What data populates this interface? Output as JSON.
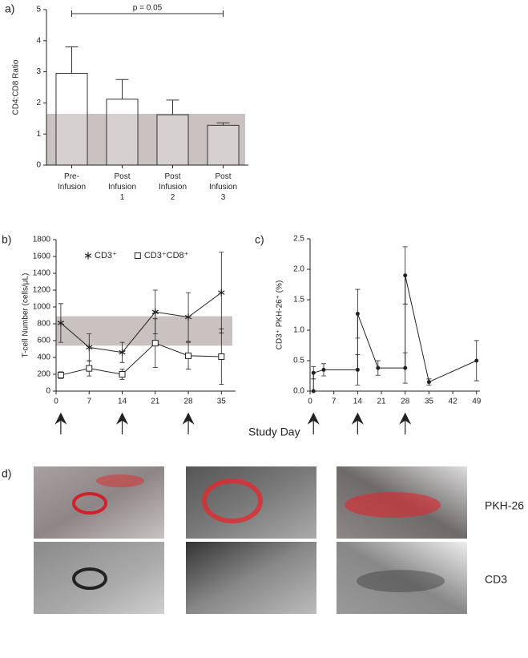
{
  "chart_data": [
    {
      "type": "bar",
      "panel": "a)",
      "ylabel": "CD4:CD8 Ratio",
      "categories": [
        [
          "Pre-",
          "Infusion"
        ],
        [
          "Post",
          "Infusion",
          "1"
        ],
        [
          "Post",
          "Infusion",
          "2"
        ],
        [
          "Post",
          "Infusion",
          "3"
        ]
      ],
      "values": [
        2.95,
        2.12,
        1.62,
        1.28
      ],
      "errors": [
        0.85,
        0.63,
        0.47,
        0.08
      ],
      "color": "#ffffff",
      "ylim": [
        0,
        5
      ],
      "yticks": [
        0,
        1,
        2,
        3,
        4,
        5
      ],
      "reference_band": [
        0,
        1.65
      ],
      "band_color": "#c9c2c0",
      "annotation": "p = 0.05"
    },
    {
      "type": "line",
      "panel": "b)",
      "ylabel": "T-cell Number (cells/μL)",
      "xlabel": "Study Day",
      "xlim": [
        0,
        38
      ],
      "xticks": [
        0,
        7,
        14,
        21,
        28,
        35
      ],
      "ylim": [
        0,
        1800
      ],
      "yticks": [
        0,
        200,
        400,
        600,
        800,
        1000,
        1200,
        1400,
        1600,
        1800
      ],
      "reference_band": [
        540,
        890
      ],
      "band_color": "#c9c2c0",
      "arrows_x": [
        1,
        14,
        28
      ],
      "legend": "top-left",
      "series": [
        {
          "name": "CD3⁺",
          "marker": "star",
          "color": "#222222",
          "x": [
            1,
            7,
            14,
            21,
            28,
            35
          ],
          "values": [
            810,
            520,
            460,
            940,
            880,
            1170
          ],
          "errors": [
            230,
            160,
            120,
            260,
            290,
            480
          ]
        },
        {
          "name": "CD3⁺CD8⁺",
          "marker": "square",
          "color": "#222222",
          "x": [
            1,
            7,
            14,
            21,
            28,
            35
          ],
          "values": [
            190,
            270,
            200,
            570,
            420,
            410
          ],
          "errors": [
            40,
            90,
            60,
            290,
            160,
            330
          ]
        }
      ]
    },
    {
      "type": "line",
      "panel": "c)",
      "ylabel": "CD3⁺ PKH-26⁺ (%)",
      "xlim": [
        0,
        50
      ],
      "xticks": [
        0,
        7,
        14,
        21,
        28,
        35,
        42,
        49
      ],
      "ylim": [
        0,
        2.5
      ],
      "yticks": [
        {
          "value": 0,
          "label": "0.0"
        },
        0.5,
        {
          "value": 1,
          "label": "1.0"
        },
        1.5,
        {
          "value": 2,
          "label": "2.0"
        },
        2.5
      ],
      "arrows_x": [
        1,
        14,
        28
      ],
      "series": [
        {
          "marker": "circle",
          "color": "#222222",
          "x": [
            1,
            1,
            4,
            14,
            14,
            20,
            28,
            28,
            35,
            49
          ],
          "values": [
            0,
            0.3,
            0.35,
            0.35,
            1.27,
            0.38,
            0.38,
            1.9,
            0.15,
            0.5
          ],
          "errors": [
            0,
            0.1,
            0.1,
            0.25,
            0.4,
            0.12,
            0.25,
            0.47,
            0.05,
            0.33
          ]
        }
      ]
    }
  ],
  "images": {
    "panel": "d)",
    "rows": [
      "PKH-26",
      "CD3"
    ]
  }
}
